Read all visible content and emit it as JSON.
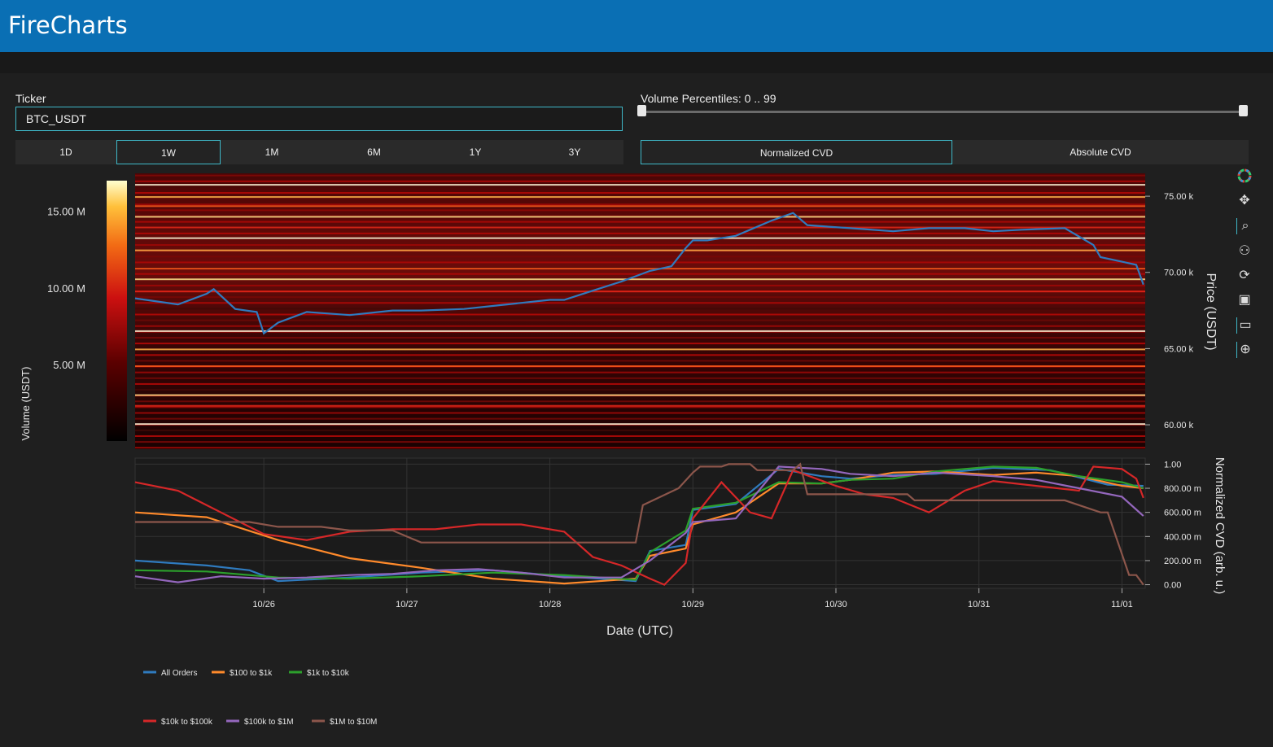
{
  "app": {
    "title": "FireCharts"
  },
  "controls": {
    "ticker_label": "Ticker",
    "ticker_value": "BTC_USDT",
    "percentiles_label": "Volume Percentiles: 0 .. 99",
    "percentile_range": [
      0,
      99
    ],
    "timeframes": [
      "1D",
      "1W",
      "1M",
      "6M",
      "1Y",
      "3Y"
    ],
    "active_timeframe": "1W",
    "cvd_modes": [
      "Normalized CVD",
      "Absolute CVD"
    ],
    "active_cvd_mode": "Normalized CVD"
  },
  "toolbar": {
    "icons": [
      "color-wheel-icon",
      "pan-icon",
      "zoom-icon",
      "compare-icon",
      "reset-icon",
      "save-icon",
      "hover-icon",
      "crosshair-icon"
    ]
  },
  "colorbar": {
    "title": "Volume (USDT)",
    "ticks": [
      "15.00 M",
      "10.00 M",
      "5.00 M"
    ],
    "tick_values": [
      15,
      10,
      5
    ],
    "range": [
      0,
      17
    ]
  },
  "colors": {
    "All Orders": "#2f7bbf",
    "$100 to $1k": "#ff8a2b",
    "$1k to $10k": "#2ca02c",
    "$10k to $100k": "#d62728",
    "$100k to $1M": "#9467bd",
    "$1M to $10M": "#8c564b"
  },
  "chart_data": [
    {
      "type": "heatmap",
      "title": "",
      "xlabel": "",
      "ylabel": "Price (USDT)",
      "y_ticks": [
        "75.00 k",
        "70.00 k",
        "65.00 k",
        "60.00 k"
      ],
      "y_tick_values": [
        75000,
        70000,
        65000,
        60000
      ],
      "ylim": [
        58400,
        76500
      ],
      "x_range": [
        "2024-10-25 03:00",
        "2024-11-01 04:00"
      ],
      "x_ticks": [
        "10/26",
        "10/27",
        "10/28",
        "10/29",
        "10/30",
        "10/31",
        "11/01"
      ],
      "bright_levels": [
        75800,
        75000,
        74400,
        73700,
        73000,
        72300,
        71500,
        70300,
        69600,
        68800,
        66200,
        65000,
        63900,
        62000,
        61300,
        60100
      ],
      "series": [
        {
          "name": "",
          "x_days": [
            0,
            0.3,
            0.5,
            0.55,
            0.7,
            0.85,
            0.9,
            1.0,
            1.2,
            1.5,
            1.8,
            2.0,
            2.3,
            2.6,
            2.9,
            3.0,
            3.2,
            3.4,
            3.6,
            3.75,
            3.85,
            3.9,
            4.0,
            4.2,
            4.45,
            4.6,
            4.7,
            4.85,
            5.0,
            5.3,
            5.55,
            5.8,
            6.0,
            6.2,
            6.5,
            6.7,
            6.75,
            6.9,
            7.0,
            7.05
          ],
          "values": [
            68300,
            67900,
            68600,
            68900,
            67600,
            67400,
            66000,
            66700,
            67400,
            67200,
            67500,
            67500,
            67600,
            67900,
            68200,
            68200,
            68800,
            69400,
            70100,
            70400,
            71600,
            72100,
            72100,
            72400,
            73400,
            73900,
            73100,
            73000,
            72900,
            72700,
            72900,
            72900,
            72700,
            72800,
            72900,
            71800,
            71000,
            70700,
            70500,
            69200
          ]
        }
      ]
    },
    {
      "type": "line",
      "title": "",
      "xlabel": "Date (UTC)",
      "ylabel": "Normalized CVD (arb. u.)",
      "y_ticks": [
        "1.00",
        "800.00 m",
        "600.00 m",
        "400.00 m",
        "200.00 m",
        "0.00"
      ],
      "y_tick_values": [
        1.0,
        0.8,
        0.6,
        0.4,
        0.2,
        0.0
      ],
      "ylim": [
        -0.03,
        1.05
      ],
      "x_ticks": [
        "10/26",
        "10/27",
        "10/28",
        "10/29",
        "10/30",
        "10/31",
        "11/01"
      ],
      "series": [
        {
          "name": "All Orders",
          "x": [
            0,
            0.5,
            0.8,
            1.0,
            1.5,
            2.0,
            2.5,
            3.0,
            3.5,
            3.6,
            3.7,
            3.85,
            3.9,
            4.2,
            4.5,
            4.8,
            5.0,
            5.3,
            5.6,
            6.0,
            6.4,
            6.8,
            7.05
          ],
          "values": [
            0.2,
            0.16,
            0.12,
            0.03,
            0.06,
            0.1,
            0.12,
            0.07,
            0.03,
            0.28,
            0.3,
            0.33,
            0.62,
            0.67,
            0.96,
            0.9,
            0.88,
            0.91,
            0.92,
            0.97,
            0.95,
            0.83,
            0.82
          ]
        },
        {
          "name": "$100 to $1k",
          "x": [
            0,
            0.5,
            1.0,
            1.5,
            2.0,
            2.5,
            3.0,
            3.5,
            3.6,
            3.85,
            3.9,
            4.2,
            4.5,
            4.8,
            5.0,
            5.3,
            5.6,
            6.0,
            6.3,
            6.6,
            6.9,
            7.05
          ],
          "values": [
            0.6,
            0.56,
            0.37,
            0.22,
            0.14,
            0.05,
            0.01,
            0.05,
            0.24,
            0.3,
            0.5,
            0.6,
            0.84,
            0.84,
            0.87,
            0.93,
            0.94,
            0.91,
            0.93,
            0.9,
            0.82,
            0.8
          ]
        },
        {
          "name": "$1k to $10k",
          "x": [
            0,
            0.5,
            1.0,
            1.5,
            2.0,
            2.5,
            3.0,
            3.5,
            3.6,
            3.85,
            3.9,
            4.2,
            4.5,
            4.8,
            5.0,
            5.3,
            5.6,
            6.0,
            6.3,
            6.6,
            6.9,
            7.05
          ],
          "values": [
            0.12,
            0.11,
            0.06,
            0.05,
            0.07,
            0.1,
            0.08,
            0.04,
            0.27,
            0.45,
            0.63,
            0.68,
            0.85,
            0.84,
            0.87,
            0.88,
            0.94,
            0.98,
            0.97,
            0.9,
            0.85,
            0.8
          ]
        },
        {
          "name": "$10k to $100k",
          "x": [
            0,
            0.3,
            0.6,
            0.9,
            1.2,
            1.5,
            1.8,
            2.1,
            2.4,
            2.7,
            3.0,
            3.2,
            3.4,
            3.6,
            3.7,
            3.85,
            3.9,
            4.1,
            4.3,
            4.45,
            4.6,
            4.9,
            5.1,
            5.3,
            5.55,
            5.8,
            6.0,
            6.3,
            6.6,
            6.7,
            6.9,
            7.0,
            7.05
          ],
          "values": [
            0.85,
            0.78,
            0.6,
            0.42,
            0.37,
            0.44,
            0.46,
            0.46,
            0.5,
            0.5,
            0.44,
            0.23,
            0.16,
            0.05,
            0.0,
            0.18,
            0.55,
            0.85,
            0.6,
            0.55,
            0.95,
            0.82,
            0.75,
            0.72,
            0.6,
            0.78,
            0.86,
            0.82,
            0.78,
            0.98,
            0.96,
            0.88,
            0.72
          ]
        },
        {
          "name": "$100k to $1M",
          "x": [
            0,
            0.3,
            0.6,
            0.9,
            1.2,
            1.5,
            1.8,
            2.1,
            2.4,
            2.7,
            3.0,
            3.4,
            3.6,
            3.85,
            3.9,
            4.2,
            4.5,
            4.8,
            5.0,
            5.3,
            5.6,
            6.0,
            6.3,
            6.6,
            6.9,
            7.05
          ],
          "values": [
            0.07,
            0.02,
            0.07,
            0.05,
            0.06,
            0.08,
            0.09,
            0.12,
            0.13,
            0.1,
            0.06,
            0.06,
            0.2,
            0.43,
            0.52,
            0.55,
            0.98,
            0.96,
            0.92,
            0.9,
            0.93,
            0.9,
            0.87,
            0.8,
            0.73,
            0.57
          ]
        },
        {
          "name": "$1M to $10M",
          "x": [
            0,
            0.8,
            1.0,
            1.3,
            1.5,
            1.8,
            2.0,
            2.3,
            2.5,
            3.0,
            3.3,
            3.4,
            3.5,
            3.55,
            3.8,
            3.9,
            3.95,
            4.1,
            4.15,
            4.3,
            4.35,
            4.6,
            4.65,
            4.7,
            5.4,
            5.45,
            6.0,
            6.5,
            6.75,
            6.8,
            6.95,
            7.0,
            7.05
          ],
          "values": [
            0.52,
            0.52,
            0.48,
            0.48,
            0.45,
            0.45,
            0.35,
            0.35,
            0.35,
            0.35,
            0.35,
            0.35,
            0.35,
            0.66,
            0.8,
            0.93,
            0.98,
            0.98,
            1.0,
            1.0,
            0.95,
            0.95,
            1.0,
            0.75,
            0.75,
            0.7,
            0.7,
            0.7,
            0.6,
            0.6,
            0.08,
            0.08,
            0.0
          ]
        }
      ]
    }
  ]
}
